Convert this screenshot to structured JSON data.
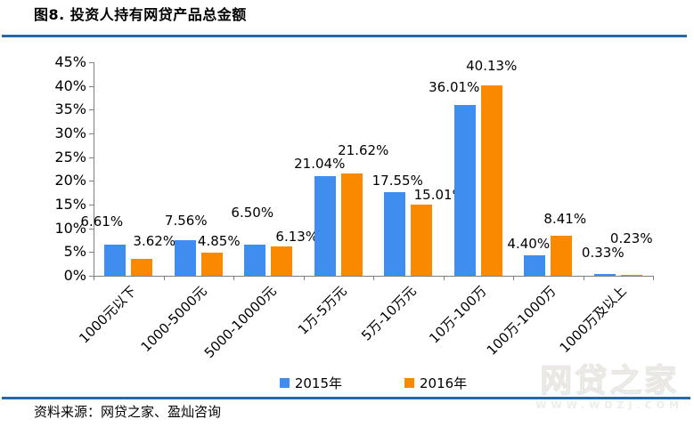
{
  "header": {
    "title": "图8. 投资人持有网贷产品总金额"
  },
  "footer": {
    "source": "资料来源：网贷之家、盈灿咨询"
  },
  "watermark": {
    "brand": "网贷之家",
    "url": "WWW.WDZJ.COM"
  },
  "colors": {
    "series_2015": "#3F8EEF",
    "series_2016": "#FB8900",
    "rule_blue": "#2668A6",
    "axis_gray": "#7F7F7F",
    "text": "#000000"
  },
  "chart_data": {
    "type": "bar",
    "title": "图8. 投资人持有网贷产品总金额",
    "categories": [
      "1000元以下",
      "1000-5000元",
      "5000-10000元",
      "1万-5万元",
      "5万-10万元",
      "10万-100万",
      "100万-1000万",
      "1000万及以上"
    ],
    "series": [
      {
        "name": "2015年",
        "color": "#3F8EEF",
        "values": [
          6.61,
          7.56,
          6.5,
          21.04,
          17.55,
          36.01,
          4.4,
          0.33
        ],
        "label_dx": [
          -15,
          1,
          -3,
          -6,
          3,
          -12,
          -7,
          -2
        ],
        "label_raise": [
          17,
          13,
          27,
          5,
          4,
          11,
          4,
          15
        ]
      },
      {
        "name": "2016年",
        "color": "#FB8900",
        "values": [
          3.62,
          4.85,
          6.13,
          21.62,
          15.01,
          40.13,
          8.41,
          0.23
        ],
        "label_dx": [
          14,
          8,
          17,
          13,
          20,
          0,
          4,
          0
        ],
        "label_raise": [
          11,
          4,
          2,
          17,
          2,
          13,
          10,
          32
        ]
      }
    ],
    "xlabel": "",
    "ylabel": "",
    "ylim": [
      0,
      45
    ],
    "ytick_step": 5,
    "ytick_labels": [
      "0%",
      "5%",
      "10%",
      "15%",
      "20%",
      "25%",
      "30%",
      "35%",
      "40%",
      "45%"
    ],
    "value_suffix": "%",
    "value_decimals": 2,
    "grid": false,
    "legend_position": "bottom-center"
  }
}
